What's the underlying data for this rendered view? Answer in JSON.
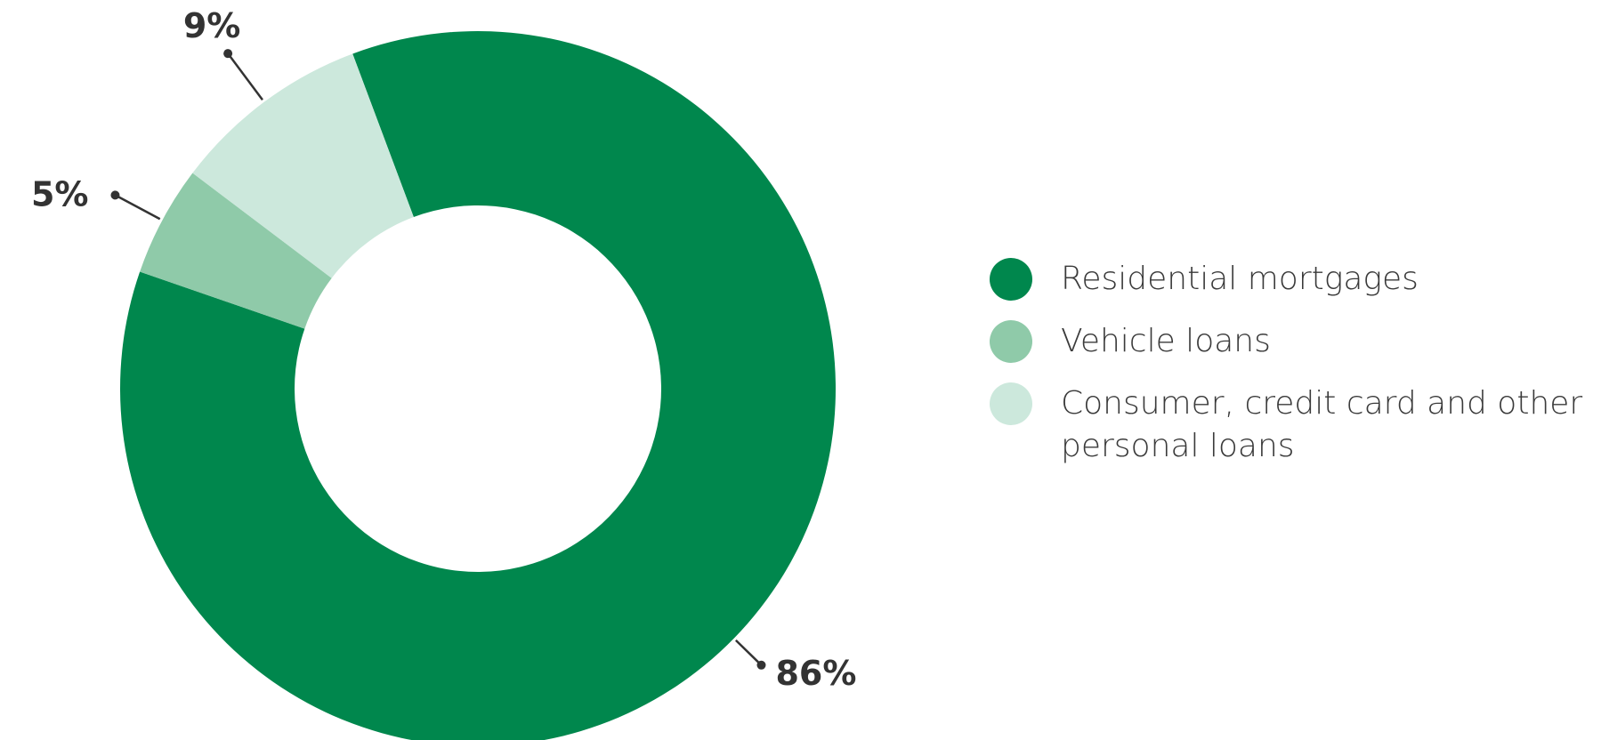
{
  "chart_data": {
    "type": "pie",
    "donut": true,
    "categories": [
      "Residential mortgages",
      "Vehicle loans",
      "Consumer, credit card and other personal loans"
    ],
    "values": [
      86,
      5,
      9
    ],
    "labels": [
      "86%",
      "5%",
      "9%"
    ],
    "colors": [
      "#00874d",
      "#8fcaa9",
      "#cce8dc"
    ],
    "label_color": "#333333",
    "legend_position": "right",
    "title": "",
    "xlabel": "",
    "ylabel": ""
  },
  "legend": {
    "items": [
      {
        "label": "Residential mortgages",
        "color": "#00874d"
      },
      {
        "label": "Vehicle loans",
        "color": "#8fcaa9"
      },
      {
        "label": "Consumer, credit card and other personal loans",
        "color": "#cce8dc"
      }
    ]
  }
}
